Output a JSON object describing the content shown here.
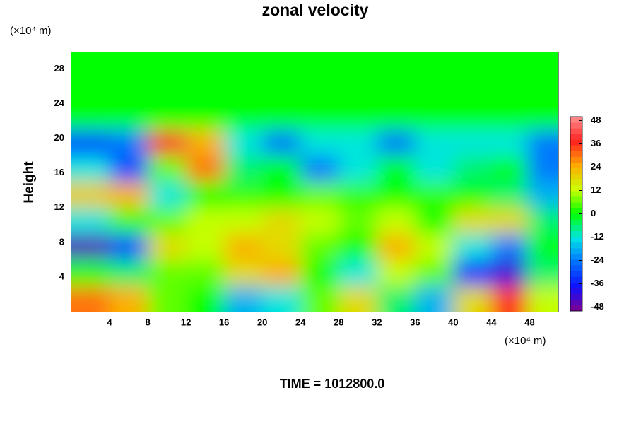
{
  "chart_data": {
    "type": "heatmap",
    "title": "zonal velocity",
    "ylabel": "Height",
    "yunit": "(×10⁴ m)",
    "xunit": "(×10⁴ m)",
    "footer": "TIME = 1012800.0",
    "x": [
      2,
      6,
      10,
      14,
      18,
      22,
      26,
      30,
      34,
      38,
      42,
      46,
      49.5
    ],
    "y": [
      1.5,
      4.5,
      7.5,
      10.5,
      13.5,
      16.5,
      19.5,
      22.5,
      25.5,
      28.5
    ],
    "z": [
      [
        30,
        24,
        6,
        0,
        -18,
        -12,
        6,
        18,
        -6,
        -18,
        18,
        36,
        12
      ],
      [
        0,
        -6,
        6,
        6,
        18,
        24,
        0,
        -12,
        12,
        6,
        -36,
        -42,
        -6
      ],
      [
        -45,
        -30,
        18,
        12,
        24,
        18,
        6,
        0,
        24,
        12,
        -12,
        -24,
        0
      ],
      [
        -12,
        3,
        6,
        12,
        12,
        18,
        12,
        6,
        12,
        0,
        18,
        18,
        -6
      ],
      [
        20,
        24,
        -12,
        0,
        3,
        0,
        6,
        3,
        0,
        3,
        0,
        -6,
        -18
      ],
      [
        -12,
        -30,
        6,
        30,
        -6,
        0,
        -24,
        -12,
        0,
        -12,
        -6,
        0,
        -24
      ],
      [
        -30,
        -24,
        40,
        24,
        -12,
        -24,
        -12,
        -12,
        -24,
        -12,
        -12,
        -12,
        -24
      ],
      [
        0,
        0,
        0,
        0,
        0,
        0,
        0,
        0,
        0,
        0,
        0,
        0,
        0
      ],
      [
        0,
        0,
        0,
        0,
        0,
        0,
        0,
        0,
        0,
        0,
        0,
        0,
        0
      ],
      [
        0,
        0,
        0,
        0,
        0,
        0,
        0,
        0,
        0,
        0,
        0,
        0,
        0
      ]
    ],
    "xlim": [
      0,
      51
    ],
    "ylim": [
      0,
      30
    ],
    "xticks": [
      4,
      8,
      12,
      16,
      20,
      24,
      28,
      32,
      36,
      40,
      44,
      48
    ],
    "yticks": [
      4,
      8,
      12,
      16,
      20,
      24,
      28
    ],
    "clim": [
      -50,
      50
    ],
    "cticks": [
      48,
      36,
      24,
      12,
      0,
      -12,
      -24,
      -36,
      -48
    ],
    "colormap": [
      "#800090",
      "#1010ff",
      "#0070ff",
      "#00e5e5",
      "#00ff00",
      "#ccff00",
      "#ffaa00",
      "#ff2020",
      "#ff9090"
    ]
  }
}
